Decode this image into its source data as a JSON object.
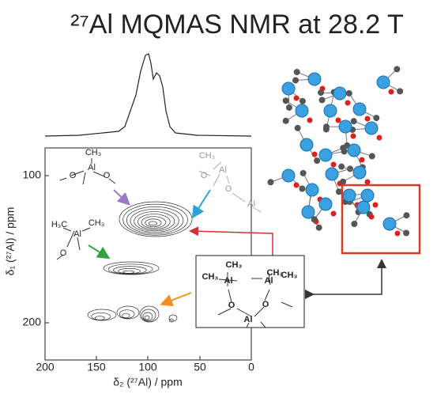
{
  "title": "²⁷Al MQMAS NMR at 28.2 T",
  "x_axis": {
    "label": "δ₂ (²⁷Al) / ppm",
    "ticks": [
      "200",
      "150",
      "100",
      "50",
      "0"
    ]
  },
  "y_axis": {
    "label": "δ₁ (²⁷Al) / ppm",
    "ticks": [
      "100",
      "200"
    ]
  },
  "sites": [
    {
      "labels": [
        "CH₃",
        "Al",
        "O",
        "O"
      ]
    },
    {
      "labels": [
        "CH₃",
        "O",
        "Al",
        "O",
        "Al"
      ]
    },
    {
      "labels": [
        "H₃C",
        "Al",
        "CH₃",
        "O"
      ]
    },
    {
      "labels": [
        "CH₃",
        "CH₃",
        "Al",
        "CH₃",
        "Al",
        "CH₃",
        "O",
        "O",
        "Al"
      ]
    }
  ]
}
